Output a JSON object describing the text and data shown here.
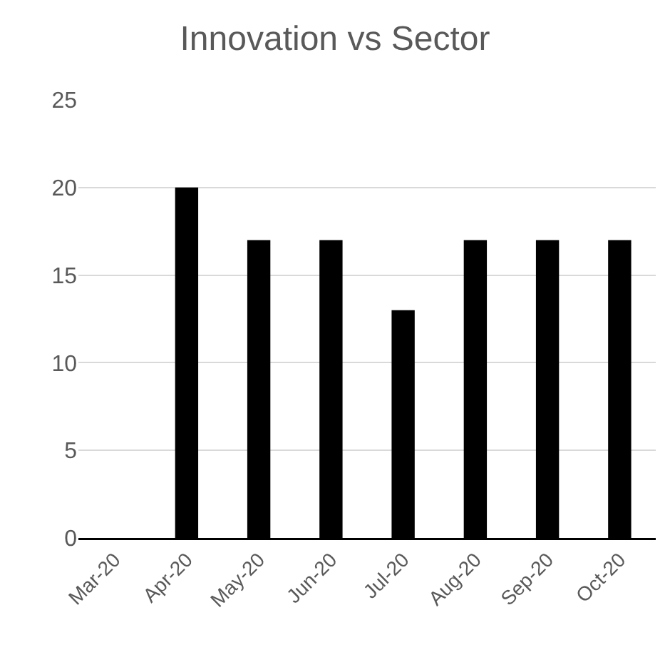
{
  "chart_data": {
    "type": "bar",
    "title": "Innovation vs Sector",
    "categories": [
      "Mar-20",
      "Apr-20",
      "May-20",
      "Jun-20",
      "Jul-20",
      "Aug-20",
      "Sep-20",
      "Oct-20"
    ],
    "values": [
      0,
      20,
      17,
      17,
      13,
      17,
      17,
      17
    ],
    "color": "#000000",
    "ylim": [
      0,
      25
    ],
    "yticks": [
      0,
      5,
      10,
      15,
      20,
      25
    ],
    "grid": "y"
  }
}
